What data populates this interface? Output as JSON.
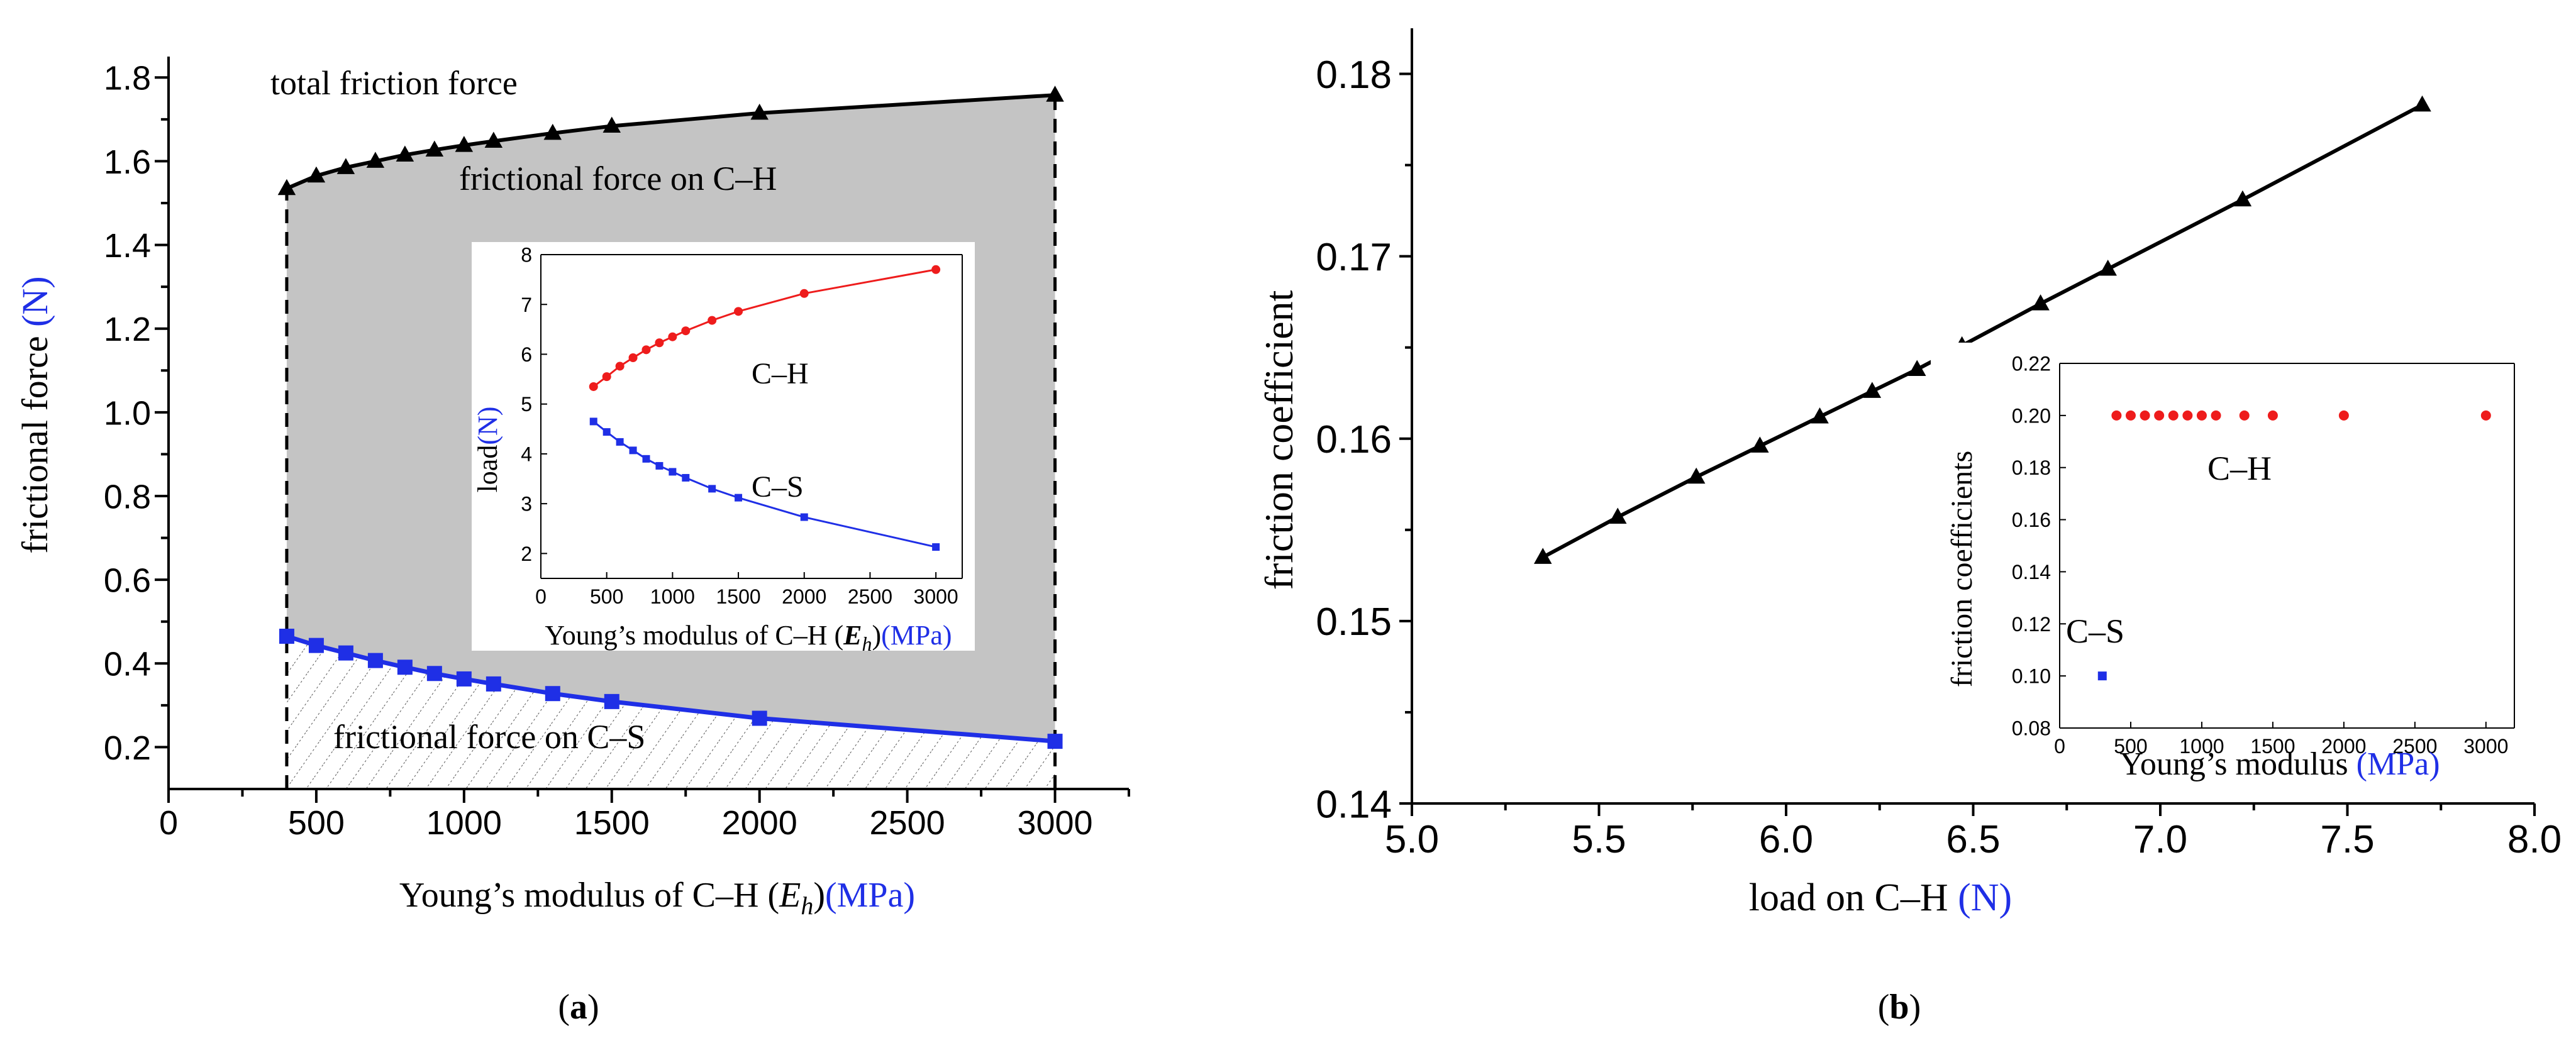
{
  "colors": {
    "black": "#000000",
    "blue": "#1f2fe6",
    "red": "#ee1c1c",
    "gray_fill": "#c4c4c4",
    "hatch": "#555555"
  },
  "chart_data": [
    {
      "id": "a",
      "type": "line",
      "caption_open": "(",
      "caption_letter": "a",
      "caption_close": ")",
      "title": "",
      "xlabel_text": "Young’s modulus of C–H (",
      "xlabel_var": "E",
      "xlabel_sub": "h",
      "xlabel_close": ")",
      "xlabel_unit": "(MPa)",
      "ylabel_text": "frictional force ",
      "ylabel_unit": "(N)",
      "xlim": [
        0,
        3250
      ],
      "ylim": [
        0.1,
        1.85
      ],
      "xticks": [
        0,
        500,
        1000,
        1500,
        2000,
        2500,
        3000
      ],
      "xtick_labels": [
        "0",
        "500",
        "1000",
        "1500",
        "2000",
        "2500",
        "3000"
      ],
      "yticks": [
        0.2,
        0.4,
        0.6,
        0.8,
        1.0,
        1.2,
        1.4,
        1.6,
        1.8
      ],
      "ytick_labels": [
        "0.2",
        "0.4",
        "0.6",
        "0.8",
        "1.0",
        "1.2",
        "1.4",
        "1.6",
        "1.8"
      ],
      "series": [
        {
          "name": "total friction force",
          "marker": "triangle",
          "color": "#000000",
          "x": [
            400,
            500,
            600,
            700,
            800,
            900,
            1000,
            1100,
            1300,
            1500,
            2000,
            3000
          ],
          "y": [
            1.535,
            1.565,
            1.585,
            1.6,
            1.615,
            1.627,
            1.638,
            1.648,
            1.667,
            1.684,
            1.715,
            1.758
          ]
        },
        {
          "name": "frictional force on C–S",
          "marker": "square",
          "color": "#1f2fe6",
          "x": [
            400,
            500,
            600,
            700,
            800,
            900,
            1000,
            1100,
            1300,
            1500,
            2000,
            3000
          ],
          "y": [
            0.465,
            0.443,
            0.425,
            0.407,
            0.391,
            0.376,
            0.363,
            0.351,
            0.328,
            0.309,
            0.269,
            0.214
          ]
        }
      ],
      "annotations": {
        "total": "total friction force",
        "ch": "frictional  force on C–H",
        "cs": "frictional  force on C–S"
      },
      "boundary_x": [
        400,
        3000
      ],
      "inset": {
        "type": "line",
        "xlabel_text": "Young’s modulus of C–H (",
        "xlabel_var": "E",
        "xlabel_sub": "h",
        "xlabel_close": ")",
        "xlabel_unit": "(MPa)",
        "ylabel_text": "load",
        "ylabel_unit": "(N)",
        "xlim": [
          0,
          3200
        ],
        "ylim": [
          1.5,
          8
        ],
        "xticks": [
          0,
          500,
          1000,
          1500,
          2000,
          2500,
          3000
        ],
        "xtick_labels": [
          "0",
          "500",
          "1000",
          "1500",
          "2000",
          "2500",
          "3000"
        ],
        "yticks": [
          2,
          3,
          4,
          5,
          6,
          7,
          8
        ],
        "ytick_labels": [
          "2",
          "3",
          "4",
          "5",
          "6",
          "7",
          "8"
        ],
        "series": [
          {
            "name": "C–H",
            "color": "#ee1c1c",
            "x": [
              400,
              500,
              600,
              700,
              800,
              900,
              1000,
              1100,
              1300,
              1500,
              2000,
              3000
            ],
            "y": [
              5.35,
              5.55,
              5.76,
              5.93,
              6.09,
              6.23,
              6.35,
              6.47,
              6.68,
              6.86,
              7.22,
              7.7
            ]
          },
          {
            "name": "C–S",
            "color": "#1f2fe6",
            "x": [
              400,
              500,
              600,
              700,
              800,
              900,
              1000,
              1100,
              1300,
              1500,
              2000,
              3000
            ],
            "y": [
              4.65,
              4.44,
              4.24,
              4.07,
              3.9,
              3.76,
              3.64,
              3.52,
              3.3,
              3.12,
              2.73,
              2.13
            ]
          }
        ],
        "labels": {
          "ch": "C–H",
          "cs": "C–S"
        }
      }
    },
    {
      "id": "b",
      "type": "line",
      "caption_open": "(",
      "caption_letter": "b",
      "caption_close": ")",
      "title": "",
      "xlabel_text": "load on C–H ",
      "xlabel_unit": "(N)",
      "ylabel_text": "friction coefficient",
      "xlim": [
        5.0,
        8.0
      ],
      "ylim": [
        0.14,
        0.1825
      ],
      "xticks": [
        5.0,
        5.5,
        6.0,
        6.5,
        7.0,
        7.5,
        8.0
      ],
      "xtick_labels": [
        "5.0",
        "5.5",
        "6.0",
        "6.5",
        "7.0",
        "7.5",
        "8.0"
      ],
      "yticks": [
        0.14,
        0.15,
        0.16,
        0.17,
        0.18
      ],
      "ytick_labels": [
        "0.14",
        "0.15",
        "0.16",
        "0.17",
        "0.18"
      ],
      "series": [
        {
          "name": "friction coefficient",
          "marker": "triangle",
          "color": "#000000",
          "x": [
            5.35,
            5.55,
            5.76,
            5.93,
            6.09,
            6.23,
            6.35,
            6.47,
            6.68,
            6.86,
            7.22,
            7.7
          ],
          "y": [
            0.1535,
            0.1557,
            0.1579,
            0.1596,
            0.1612,
            0.1626,
            0.1638,
            0.1651,
            0.1674,
            0.1693,
            0.1731,
            0.1783
          ]
        }
      ],
      "inset": {
        "type": "scatter",
        "xlabel_text": "Young’s modulus ",
        "xlabel_unit": "(MPa)",
        "ylabel_text": "friction coefficients",
        "xlim": [
          0,
          3200
        ],
        "ylim": [
          0.08,
          0.22
        ],
        "xticks": [
          0,
          500,
          1000,
          1500,
          2000,
          2500,
          3000
        ],
        "xtick_labels": [
          "0",
          "500",
          "1000",
          "1500",
          "2000",
          "2500",
          "3000"
        ],
        "yticks": [
          0.08,
          0.1,
          0.12,
          0.14,
          0.16,
          0.18,
          0.2,
          0.22
        ],
        "ytick_labels": [
          "0.08",
          "0.10",
          "0.12",
          "0.14",
          "0.16",
          "0.18",
          "0.20",
          "0.22"
        ],
        "series": [
          {
            "name": "C–H",
            "color": "#ee1c1c",
            "x": [
              400,
              500,
              600,
              700,
              800,
              900,
              1000,
              1100,
              1300,
              1500,
              2000,
              3000
            ],
            "y": [
              0.2,
              0.2,
              0.2,
              0.2,
              0.2,
              0.2,
              0.2,
              0.2,
              0.2,
              0.2,
              0.2,
              0.2
            ]
          },
          {
            "name": "C–S",
            "color": "#1f2fe6",
            "x": [
              300
            ],
            "y": [
              0.1
            ]
          }
        ],
        "labels": {
          "ch": "C–H",
          "cs": "C–S"
        }
      }
    }
  ]
}
